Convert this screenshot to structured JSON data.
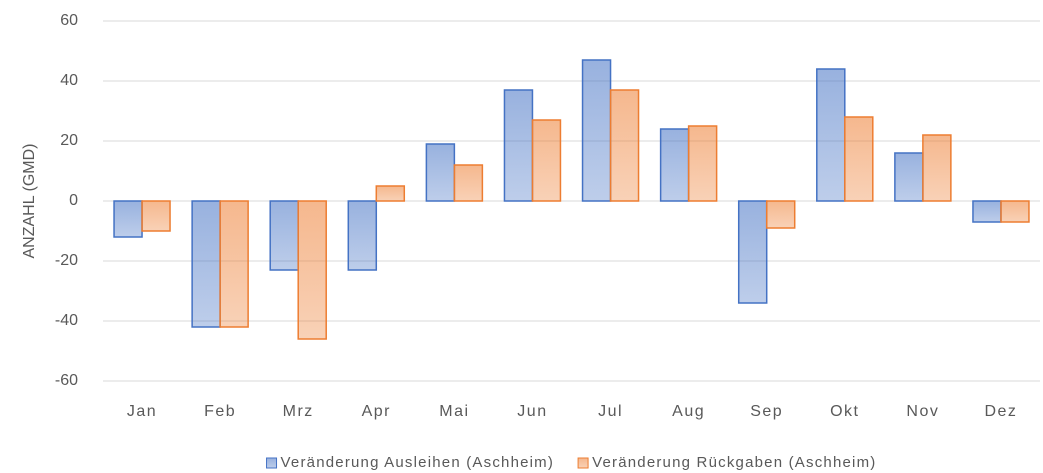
{
  "chart_data": {
    "type": "bar",
    "y_axis_label": "ANZAHL (GMD)",
    "categories": [
      "Jan",
      "Feb",
      "Mrz",
      "Apr",
      "Mai",
      "Jun",
      "Jul",
      "Aug",
      "Sep",
      "Okt",
      "Nov",
      "Dez"
    ],
    "series": [
      {
        "name": "Veränderung Ausleihen (Aschheim)",
        "color": "#4472c4",
        "values": [
          -12,
          -42,
          -23,
          -23,
          19,
          37,
          47,
          24,
          -34,
          44,
          16,
          -7
        ]
      },
      {
        "name": "Veränderung Rückgaben (Aschheim)",
        "color": "#ed7d31",
        "values": [
          -10,
          -42,
          -46,
          5,
          12,
          27,
          37,
          25,
          -9,
          28,
          22,
          -7
        ]
      }
    ],
    "ylim": [
      -60,
      60
    ],
    "yticks": [
      -60,
      -40,
      -20,
      0,
      20,
      40,
      60
    ],
    "grid": true,
    "legend": "bottom"
  }
}
